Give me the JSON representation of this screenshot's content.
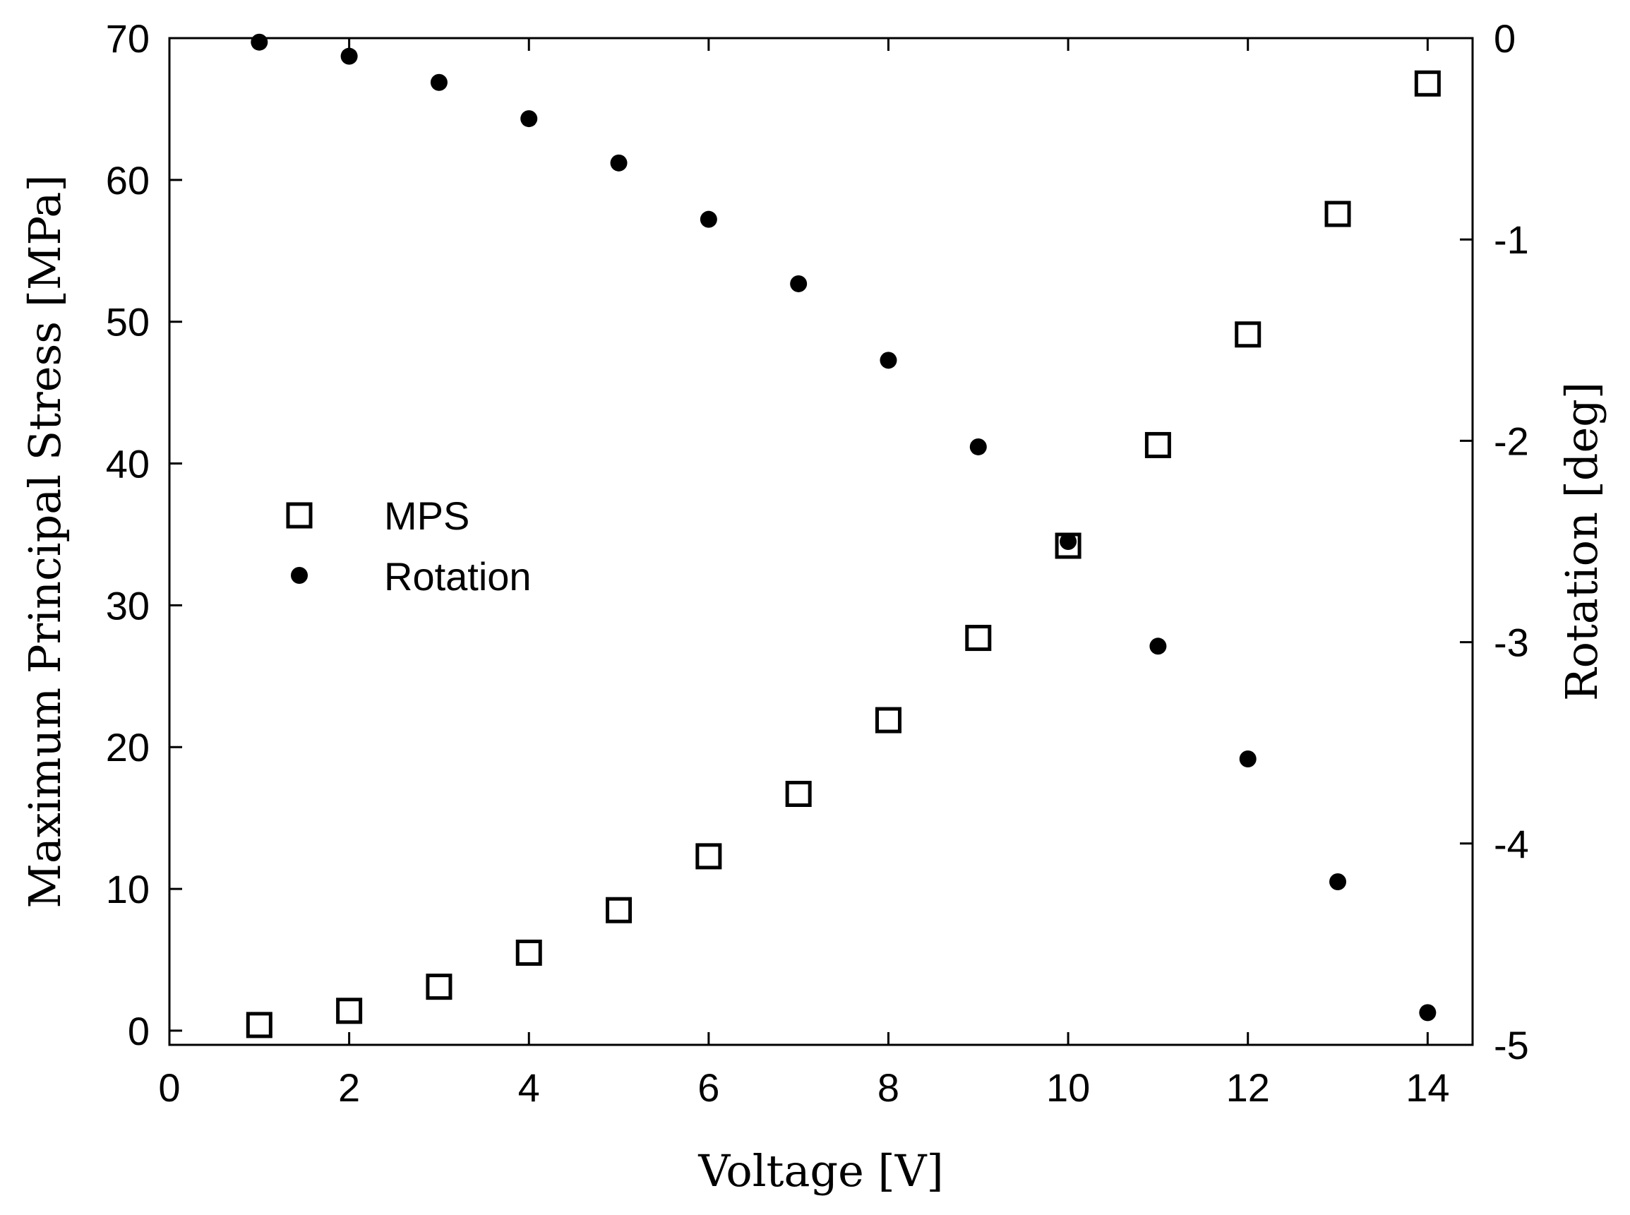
{
  "chart_data": {
    "type": "scatter",
    "title": "",
    "xlabel": "Voltage [V]",
    "ylabel_left": "Maximum Principal Stress [MPa]",
    "ylabel_right": "Rotation [deg]",
    "xlim": [
      0,
      14.5
    ],
    "ylim_left": [
      -1,
      70
    ],
    "ylim_right": [
      -5,
      0
    ],
    "x_ticks": [
      0,
      2,
      4,
      6,
      8,
      10,
      12,
      14
    ],
    "x_tick_labels": [
      "0",
      "2",
      "4",
      "6",
      "8",
      "10",
      "12",
      "14"
    ],
    "y_left_ticks": [
      0,
      10,
      20,
      30,
      40,
      50,
      60,
      70
    ],
    "y_left_tick_labels": [
      "0",
      "10",
      "20",
      "30",
      "40",
      "50",
      "60",
      "70"
    ],
    "y_right_ticks": [
      0,
      -1,
      -2,
      -3,
      -4,
      -5
    ],
    "y_right_tick_labels": [
      "0",
      "-1",
      "-2",
      "-3",
      "-4",
      "-5"
    ],
    "grid": false,
    "legend_position": "center-left",
    "series": [
      {
        "name": "MPS",
        "axis": "left",
        "marker": "square",
        "color": "#000000",
        "x": [
          1,
          2,
          3,
          4,
          5,
          6,
          7,
          8,
          9,
          10,
          11,
          12,
          13,
          14
        ],
        "values": [
          0.4,
          1.4,
          3.1,
          5.5,
          8.5,
          12.3,
          16.7,
          21.9,
          27.7,
          34.2,
          41.3,
          49.1,
          57.6,
          66.8
        ]
      },
      {
        "name": "Rotation",
        "axis": "right",
        "marker": "dot",
        "color": "#000000",
        "x": [
          1,
          2,
          3,
          4,
          5,
          6,
          7,
          8,
          9,
          10,
          11,
          12,
          13,
          14
        ],
        "values": [
          -0.02,
          -0.09,
          -0.22,
          -0.4,
          -0.62,
          -0.9,
          -1.22,
          -1.6,
          -2.03,
          -2.5,
          -3.02,
          -3.58,
          -4.19,
          -4.84
        ]
      }
    ]
  }
}
